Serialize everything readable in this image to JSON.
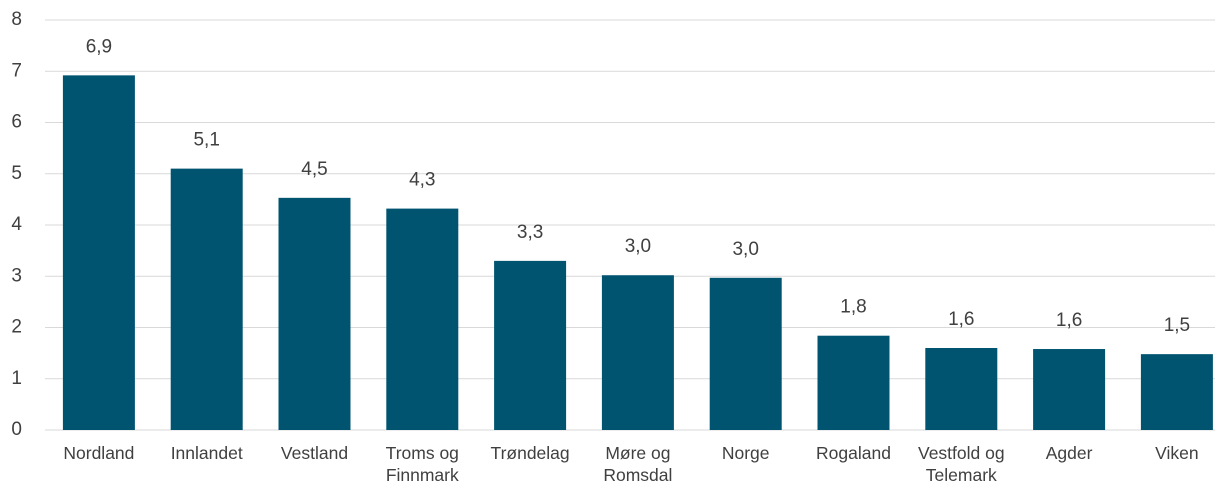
{
  "chart_data": {
    "type": "bar",
    "categories": [
      "Nordland",
      "Innlandet",
      "Vestland",
      "Troms og Finnmark",
      "Trøndelag",
      "Møre og Romsdal",
      "Norge",
      "Rogaland",
      "Vestfold og Telemark",
      "Agder",
      "Viken"
    ],
    "values": [
      6.92,
      5.1,
      4.53,
      4.32,
      3.3,
      3.02,
      2.97,
      1.84,
      1.6,
      1.58,
      1.48
    ],
    "value_labels": [
      "6,9",
      "5,1",
      "4,5",
      "4,3",
      "3,3",
      "3,0",
      "3,0",
      "1,8",
      "1,6",
      "1,6",
      "1,5"
    ],
    "color": "#005470",
    "ylim": [
      0,
      8
    ],
    "yticks": [
      0,
      1,
      2,
      3,
      4,
      5,
      6,
      7,
      8
    ],
    "grid": true
  }
}
